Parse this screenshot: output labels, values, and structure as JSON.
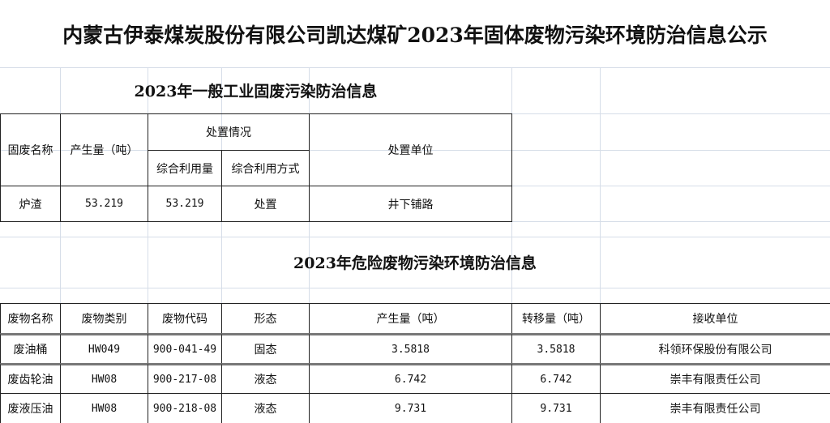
{
  "title": "内蒙古伊泰煤炭股份有限公司凯达煤矿2023年固体废物污染环境防治信息公示",
  "general": {
    "title": "2023年一般工业固废污染防治信息",
    "headers": {
      "name": "固废名称",
      "amount": "产生量（吨）",
      "disposal": "处置情况",
      "use_amount": "综合利用量",
      "use_method": "综合利用方式",
      "unit": "处置单位"
    },
    "rows": [
      {
        "name": "炉渣",
        "amount": "53.219",
        "use_amount": "53.219",
        "use_method": "处置",
        "unit": "井下铺路"
      }
    ]
  },
  "hazardous": {
    "title": "2023年危险废物污染环境防治信息",
    "headers": [
      "废物名称",
      "废物类别",
      "废物代码",
      "形态",
      "产生量（吨）",
      "转移量（吨）",
      "接收单位"
    ],
    "rows": [
      [
        "废油桶",
        "HW049",
        "900-041-49",
        "固态",
        "3.5818",
        "3.5818",
        "科领环保股份有限公司"
      ],
      [
        "废齿轮油",
        "HW08",
        "900-217-08",
        "液态",
        "6.742",
        "6.742",
        "崇丰有限责任公司"
      ],
      [
        "废液压油",
        "HW08",
        "900-218-08",
        "液态",
        "9.731",
        "9.731",
        "崇丰有限责任公司"
      ]
    ]
  }
}
